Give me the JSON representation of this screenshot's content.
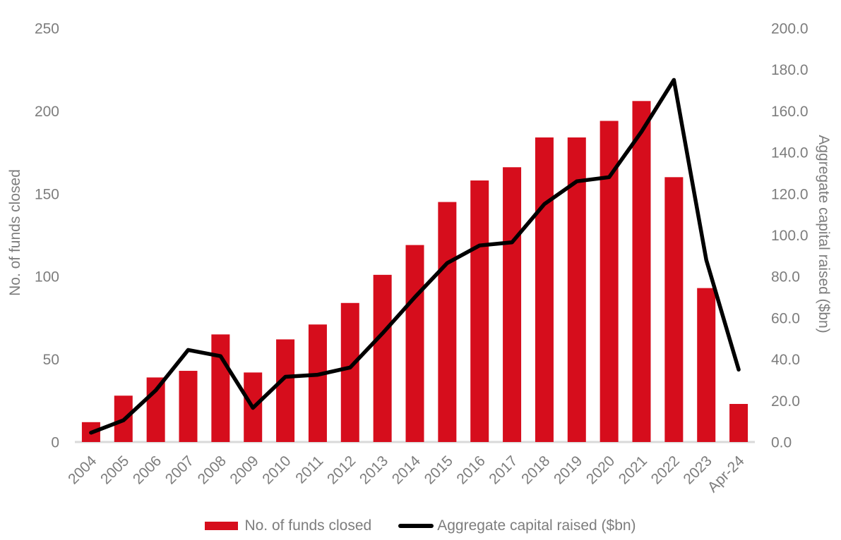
{
  "chart_data": {
    "type": "bar",
    "subtype": "combo-bar-line",
    "title": "",
    "categories": [
      "2004",
      "2005",
      "2006",
      "2007",
      "2008",
      "2009",
      "2010",
      "2011",
      "2012",
      "2013",
      "2014",
      "2015",
      "2016",
      "2017",
      "2018",
      "2019",
      "2020",
      "2021",
      "2022",
      "2023",
      "Apr-24"
    ],
    "series": [
      {
        "name": "No. of funds closed",
        "type": "bar",
        "axis": "left",
        "color": "#d60d1c",
        "values": [
          12,
          28,
          39,
          43,
          65,
          42,
          62,
          71,
          84,
          101,
          119,
          145,
          158,
          166,
          184,
          184,
          194,
          206,
          160,
          93,
          23
        ]
      },
      {
        "name": "Aggregate capital raised ($bn)",
        "type": "line",
        "axis": "right",
        "color": "#000000",
        "values": [
          4.5,
          10.5,
          25,
          44.5,
          41.5,
          16.5,
          31.5,
          32.5,
          36,
          52.5,
          70,
          86.5,
          95,
          96.5,
          115,
          126,
          128,
          150,
          175,
          88,
          35
        ]
      }
    ],
    "left_axis": {
      "title": "No. of funds closed",
      "min": 0,
      "max": 250,
      "ticks": [
        "0",
        "50",
        "100",
        "150",
        "200",
        "250"
      ]
    },
    "right_axis": {
      "title": "Aggregate capital raised ($bn)",
      "min": 0,
      "max": 200,
      "ticks": [
        "0.0",
        "20.0",
        "40.0",
        "60.0",
        "80.0",
        "100.0",
        "120.0",
        "140.0",
        "160.0",
        "180.0",
        "200.0"
      ]
    },
    "grid": false,
    "legend_position": "bottom",
    "x_label_rotation_deg": -45
  },
  "colors": {
    "bar": "#d60d1c",
    "line": "#000000",
    "axis_text": "#7d7d7d",
    "baseline": "#d9d9d9",
    "background": "#ffffff"
  }
}
